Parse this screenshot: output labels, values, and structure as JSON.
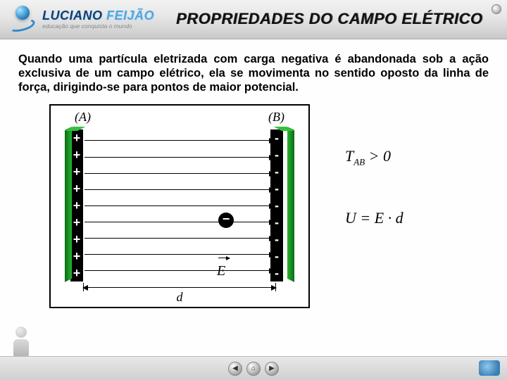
{
  "header": {
    "brand_main": "LUCIANO ",
    "brand_accent": "FEIJÃO",
    "tagline": "educação que conquista o mundo",
    "title": "PROPRIEDADES DO CAMPO ELÉTRICO"
  },
  "paragraph": "Quando uma partícula eletrizada com carga negativa é abandonada sob a ação exclusiva de um campo elétrico, ela se movimenta no sentido oposto da linha de força, dirigindo-se para pontos de maior potencial.",
  "diagram": {
    "label_A": "(A)",
    "label_B": "(B)",
    "left_signs": [
      "+",
      "+",
      "+",
      "+",
      "+",
      "+",
      "+",
      "+",
      "+"
    ],
    "right_signs": [
      "-",
      "-",
      "-",
      "-",
      "-",
      "-",
      "-",
      "-",
      "-"
    ],
    "particle_sign": "−",
    "vector_label": "E",
    "distance_label": "d",
    "field_line_count": 9,
    "colors": {
      "plate_face": "#000000",
      "plate_side": "#26b52f",
      "line": "#000000",
      "background": "#ffffff",
      "border": "#000000"
    }
  },
  "formulas": {
    "f1_lhs": "T",
    "f1_sub": "AB",
    "f1_op": " > 0",
    "f2": "U = E · d"
  },
  "nav": {
    "prev": "◀",
    "home": "⌂",
    "next": "▶"
  }
}
